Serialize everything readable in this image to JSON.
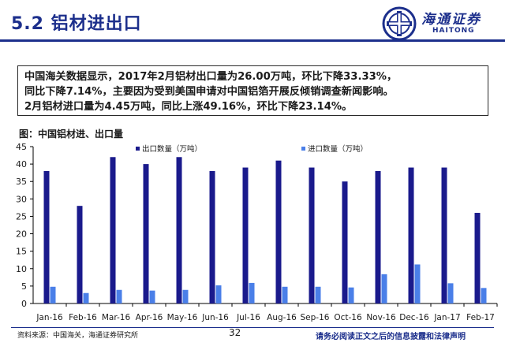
{
  "slide": {
    "title": "5.2 铝材进出口",
    "logo_cn": "海通证券",
    "logo_en": "HAITONG",
    "summary": "中国海关数据显示，2017年2月铝材出口量为26.00万吨，环比下降33.33%，\n同比下降7.14%，主要因为受到美国申请对中国铝箔开展反倾销调查新闻影响。\n2月铝材进口量为4.45万吨，同比上涨49.16%，环比下降23.14%。",
    "chart_title": "图：中国铝材进、出口量",
    "source": "资料来源：中国海关，海通证券研究所",
    "page_number": "32",
    "disclaimer": "请务必阅读正文之后的信息披露和法律声明"
  },
  "colors": {
    "export": "#1a1a8c",
    "import": "#4a7fe8",
    "brand": "#1c2f8c"
  },
  "chart_data": {
    "type": "bar",
    "categories": [
      "Jan-16",
      "Feb-16",
      "Mar-16",
      "Apr-16",
      "May-16",
      "Jun-16",
      "Jul-16",
      "Aug-16",
      "Sep-16",
      "Oct-16",
      "Nov-16",
      "Dec-16",
      "Jan-17",
      "Feb-17"
    ],
    "series": [
      {
        "name": "出口数量（万吨）",
        "values": [
          38,
          28,
          42,
          40,
          42,
          38,
          39,
          41,
          39,
          35,
          38,
          39,
          39,
          26
        ]
      },
      {
        "name": "进口数量（万吨）",
        "values": [
          4.8,
          3.0,
          3.9,
          3.7,
          3.9,
          5.2,
          5.9,
          4.8,
          4.8,
          4.6,
          8.4,
          11.2,
          5.8,
          4.45
        ]
      }
    ],
    "yticks": [
      0,
      5,
      10,
      15,
      20,
      25,
      30,
      35,
      40,
      45
    ],
    "ylim": [
      0,
      45
    ],
    "grid": false,
    "legend_position": "top"
  }
}
